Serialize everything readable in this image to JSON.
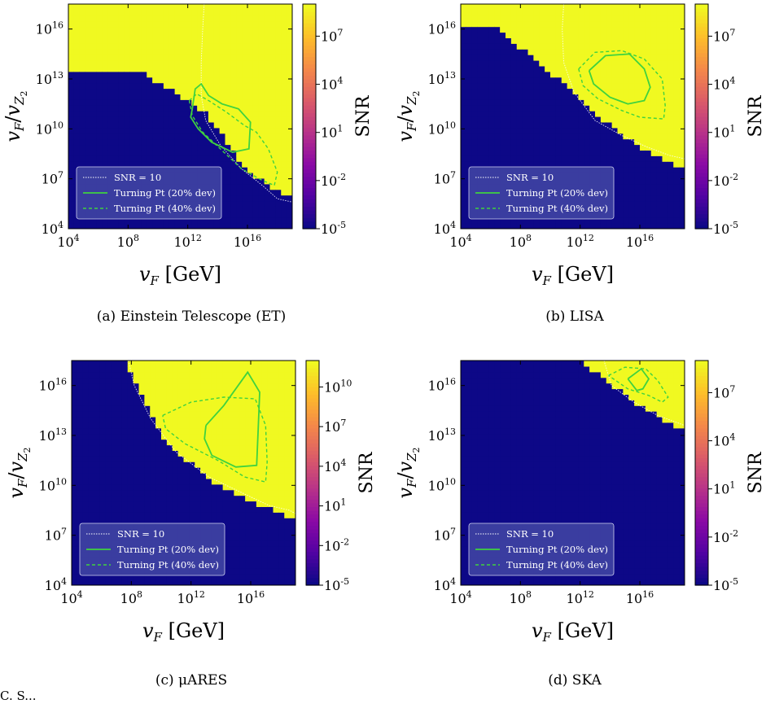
{
  "figure": {
    "footer_text": "C.   S...",
    "colors": {
      "colormap": [
        "#0d0887",
        "#5302a3",
        "#8b0aa5",
        "#b83289",
        "#db5c68",
        "#f48849",
        "#febd2a",
        "#f0f921"
      ],
      "turning_point": "#3fd23f",
      "snr_contour": "#ffffff",
      "legend_bg": "#4a4fa8"
    }
  },
  "chart_data": [
    {
      "id": "a",
      "type": "heatmap",
      "caption": "(a) Einstein Telescope (ET)",
      "xlabel": "v_F [GeV]",
      "ylabel": "v_F / v_Z2",
      "colorbar_label": "SNR",
      "x_log_range": [
        4,
        19
      ],
      "y_log_range": [
        4,
        17.5
      ],
      "x_ticks": [
        "10^4",
        "10^8",
        "10^12",
        "10^16"
      ],
      "y_ticks": [
        "10^4",
        "10^7",
        "10^10",
        "10^13",
        "10^16"
      ],
      "colorbar_ticks": [
        "10^-5",
        "10^-2",
        "10^1",
        "10^4",
        "10^7"
      ],
      "colorbar_log_range": [
        -5,
        9
      ],
      "legend": [
        "SNR = 10",
        "Turning Pt (20% dev)",
        "Turning Pt (40% dev)"
      ],
      "legend_placement": "bottom-left",
      "snr10_contour": [
        [
          13.1,
          17.5
        ],
        [
          13.0,
          16.0
        ],
        [
          12.9,
          14.0
        ],
        [
          12.9,
          12.0
        ],
        [
          13.2,
          10.5
        ],
        [
          14.2,
          9.0
        ],
        [
          15.6,
          7.6
        ],
        [
          17.0,
          6.6
        ],
        [
          18.0,
          5.8
        ],
        [
          19.0,
          5.6
        ]
      ],
      "turning_pt_20": [
        [
          12.3,
          11.2
        ],
        [
          12.5,
          12.4
        ],
        [
          12.9,
          12.7
        ],
        [
          13.4,
          12.0
        ],
        [
          14.3,
          11.5
        ],
        [
          15.4,
          11.2
        ],
        [
          16.2,
          10.4
        ],
        [
          16.1,
          8.8
        ],
        [
          15.0,
          8.6
        ],
        [
          13.6,
          9.2
        ],
        [
          12.7,
          10.0
        ],
        [
          12.2,
          10.7
        ],
        [
          12.3,
          11.2
        ]
      ],
      "turning_pt_40": [
        [
          12.1,
          11.7
        ],
        [
          12.6,
          12.1
        ],
        [
          13.4,
          11.7
        ],
        [
          14.6,
          11.0
        ],
        [
          15.8,
          10.2
        ],
        [
          16.6,
          9.8
        ],
        [
          17.4,
          8.8
        ],
        [
          18.0,
          7.4
        ],
        [
          17.8,
          6.6
        ],
        [
          17.0,
          6.9
        ],
        [
          15.6,
          7.6
        ],
        [
          14.3,
          8.7
        ],
        [
          13.0,
          9.8
        ],
        [
          12.3,
          10.8
        ],
        [
          12.1,
          11.7
        ]
      ],
      "colormap_params": {
        "a": 3.0,
        "b": 3.3,
        "c": 1.0,
        "d": 17.0,
        "cap": 9,
        "floor_x": [
          9,
          13.2,
          16,
          19
        ],
        "floor_y": [
          13.4,
          11.0,
          7.4,
          5.8
        ]
      }
    },
    {
      "id": "b",
      "type": "heatmap",
      "caption": "(b) LISA",
      "xlabel": "v_F [GeV]",
      "ylabel": "v_F / v_Z2",
      "colorbar_label": "SNR",
      "x_log_range": [
        4,
        19
      ],
      "y_log_range": [
        4,
        17.5
      ],
      "x_ticks": [
        "10^4",
        "10^8",
        "10^12",
        "10^16"
      ],
      "y_ticks": [
        "10^4",
        "10^7",
        "10^10",
        "10^13",
        "10^16"
      ],
      "colorbar_ticks": [
        "10^-5",
        "10^-2",
        "10^1",
        "10^4",
        "10^7"
      ],
      "colorbar_log_range": [
        -5,
        9
      ],
      "legend": [
        "SNR = 10",
        "Turning Pt (20% dev)",
        "Turning Pt (40% dev)"
      ],
      "legend_placement": "bottom-left",
      "snr10_contour": [
        [
          10.9,
          17.5
        ],
        [
          10.8,
          16.0
        ],
        [
          10.9,
          14.0
        ],
        [
          11.6,
          12.2
        ],
        [
          13.0,
          10.5
        ],
        [
          14.8,
          9.6
        ],
        [
          16.5,
          8.9
        ],
        [
          18.0,
          8.4
        ],
        [
          19.0,
          8.2
        ]
      ],
      "turning_pt_20": [
        [
          12.6,
          13.5
        ],
        [
          13.7,
          14.4
        ],
        [
          15.3,
          14.5
        ],
        [
          16.3,
          13.6
        ],
        [
          16.7,
          12.5
        ],
        [
          16.3,
          11.7
        ],
        [
          15.2,
          11.5
        ],
        [
          14.0,
          11.9
        ],
        [
          12.9,
          12.7
        ],
        [
          12.6,
          13.5
        ]
      ],
      "turning_pt_40": [
        [
          11.9,
          13.6
        ],
        [
          13.0,
          14.6
        ],
        [
          14.8,
          14.7
        ],
        [
          16.3,
          14.2
        ],
        [
          17.5,
          13.0
        ],
        [
          17.7,
          11.4
        ],
        [
          17.6,
          10.6
        ],
        [
          16.0,
          10.7
        ],
        [
          14.8,
          11.1
        ],
        [
          13.2,
          11.8
        ],
        [
          12.2,
          12.6
        ],
        [
          11.9,
          13.6
        ]
      ],
      "colormap_params": {
        "a": 2.5,
        "b": 3.2,
        "c": 1.0,
        "d": 21.0,
        "cap": 9,
        "floor_x": [
          6.5,
          10.5,
          14,
          17,
          19
        ],
        "floor_y": [
          16.0,
          13.0,
          10.2,
          8.4,
          7.6
        ]
      }
    },
    {
      "id": "c",
      "type": "heatmap",
      "caption": "(c) μARES",
      "xlabel": "v_F [GeV]",
      "ylabel": "v_F / v_Z2",
      "colorbar_label": "SNR",
      "x_log_range": [
        4,
        19
      ],
      "y_log_range": [
        4,
        17.5
      ],
      "x_ticks": [
        "10^4",
        "10^8",
        "10^12",
        "10^16"
      ],
      "y_ticks": [
        "10^4",
        "10^7",
        "10^10",
        "10^13",
        "10^16"
      ],
      "colorbar_ticks": [
        "10^-5",
        "10^-2",
        "10^1",
        "10^4",
        "10^7",
        "10^10"
      ],
      "colorbar_log_range": [
        -5,
        12
      ],
      "legend": [
        "SNR = 10",
        "Turning Pt (20% dev)",
        "Turning Pt (40% dev)"
      ],
      "legend_placement": "bottom-left",
      "snr10_contour": [
        [
          7.8,
          17.5
        ],
        [
          8.2,
          16.0
        ],
        [
          9.3,
          14.0
        ],
        [
          11.0,
          12.0
        ],
        [
          13.2,
          10.5
        ],
        [
          15.3,
          9.6
        ],
        [
          17.2,
          8.8
        ],
        [
          18.6,
          8.5
        ],
        [
          19.0,
          8.3
        ]
      ],
      "turning_pt_20": [
        [
          13.0,
          13.6
        ],
        [
          14.2,
          14.8
        ],
        [
          15.8,
          16.8
        ],
        [
          16.6,
          15.6
        ],
        [
          16.5,
          13.4
        ],
        [
          16.4,
          11.2
        ],
        [
          15.0,
          11.1
        ],
        [
          13.4,
          11.8
        ],
        [
          12.9,
          12.8
        ],
        [
          13.0,
          13.6
        ]
      ],
      "turning_pt_40": [
        [
          10.1,
          14.2
        ],
        [
          12.0,
          15.0
        ],
        [
          14.2,
          15.3
        ],
        [
          16.3,
          15.2
        ],
        [
          17.0,
          13.6
        ],
        [
          17.1,
          11.4
        ],
        [
          17.0,
          10.2
        ],
        [
          15.6,
          10.5
        ],
        [
          13.8,
          11.5
        ],
        [
          11.6,
          12.5
        ],
        [
          10.3,
          13.4
        ],
        [
          10.1,
          14.2
        ]
      ],
      "colormap_params": {
        "a": 2.8,
        "b": 3.8,
        "c": 1.0,
        "d": 26.0,
        "cap": 12,
        "floor_x": [
          7.5,
          10,
          13,
          16,
          19
        ],
        "floor_y": [
          17.5,
          13.0,
          10.5,
          9.0,
          8.0
        ]
      }
    },
    {
      "id": "d",
      "type": "heatmap",
      "caption": "(d) SKA",
      "xlabel": "v_F [GeV]",
      "ylabel": "v_F / v_Z2",
      "colorbar_label": "SNR",
      "x_log_range": [
        4,
        19
      ],
      "y_log_range": [
        4,
        17.5
      ],
      "x_ticks": [
        "10^4",
        "10^8",
        "10^12",
        "10^16"
      ],
      "y_ticks": [
        "10^4",
        "10^7",
        "10^10",
        "10^13",
        "10^16"
      ],
      "colorbar_ticks": [
        "10^-5",
        "10^-2",
        "10^1",
        "10^4",
        "10^7"
      ],
      "colorbar_log_range": [
        -5,
        9
      ],
      "legend": [
        "SNR = 10",
        "Turning Pt (20% dev)",
        "Turning Pt (40% dev)"
      ],
      "legend_placement": "bottom-left",
      "snr10_contour": [
        [
          13.6,
          17.5
        ],
        [
          14.1,
          16.0
        ],
        [
          15.6,
          15.0
        ],
        [
          17.2,
          14.2
        ],
        [
          19.0,
          13.6
        ]
      ],
      "turning_pt_20": [
        [
          15.2,
          16.4
        ],
        [
          16.1,
          17.0
        ],
        [
          16.6,
          16.4
        ],
        [
          16.2,
          15.8
        ],
        [
          15.8,
          15.7
        ],
        [
          15.2,
          16.4
        ]
      ],
      "turning_pt_40": [
        [
          13.9,
          16.6
        ],
        [
          15.0,
          17.1
        ],
        [
          16.4,
          17.0
        ],
        [
          17.2,
          16.3
        ],
        [
          17.9,
          15.3
        ],
        [
          17.5,
          15.0
        ],
        [
          16.6,
          15.4
        ],
        [
          15.2,
          15.8
        ],
        [
          13.9,
          16.6
        ]
      ],
      "colormap_params": {
        "a": 2.6,
        "b": 3.4,
        "c": 1.0,
        "d": 33.0,
        "cap": 9,
        "floor_x": [
          12,
          14,
          16,
          19
        ],
        "floor_y": [
          17.5,
          16.2,
          14.8,
          13.2
        ]
      }
    }
  ]
}
